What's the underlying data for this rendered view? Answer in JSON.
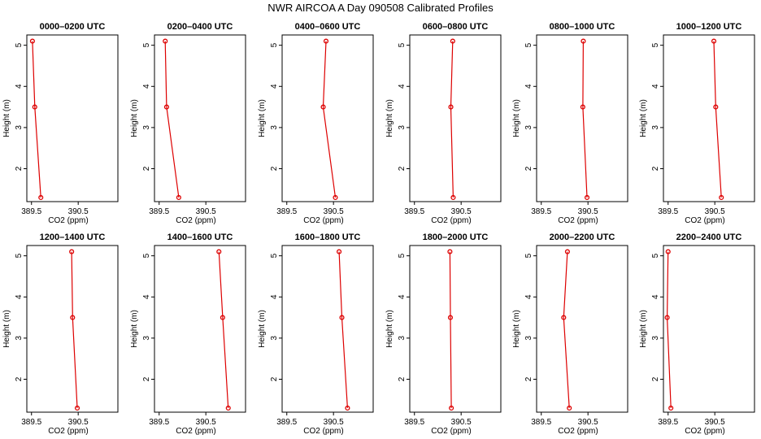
{
  "chart_data": {
    "title": "NWR AIRCOA A  Day 090508  Calibrated Profiles",
    "type": "line",
    "xlabel": "CO2 (ppm)",
    "ylabel": "Height (m)",
    "xlim": [
      389.4,
      391.35
    ],
    "ylim": [
      1.2,
      5.25
    ],
    "xticks": [
      389.5,
      390.5
    ],
    "xtick_labels": [
      "389.5",
      "390.5"
    ],
    "yticks": [
      2,
      3,
      4,
      5
    ],
    "ytick_labels": [
      "2",
      "3",
      "4",
      "5"
    ],
    "line_color": "#dd0000",
    "heights": [
      5.1,
      3.5,
      1.3
    ],
    "panels": [
      {
        "title": "0000–0200 UTC",
        "x": [
          389.52,
          389.57,
          389.7
        ]
      },
      {
        "title": "0200–0400 UTC",
        "x": [
          389.63,
          389.66,
          389.92
        ]
      },
      {
        "title": "0400–0600 UTC",
        "x": [
          390.34,
          390.28,
          390.54
        ]
      },
      {
        "title": "0600–0800 UTC",
        "x": [
          390.32,
          390.28,
          390.33
        ]
      },
      {
        "title": "0800–1000 UTC",
        "x": [
          390.4,
          390.39,
          390.48
        ]
      },
      {
        "title": "1000–1200 UTC",
        "x": [
          390.48,
          390.52,
          390.64
        ]
      },
      {
        "title": "1200–1400 UTC",
        "x": [
          390.36,
          390.38,
          390.48
        ]
      },
      {
        "title": "1400–1600 UTC",
        "x": [
          390.78,
          390.86,
          390.98
        ]
      },
      {
        "title": "1600–1800 UTC",
        "x": [
          390.62,
          390.68,
          390.8
        ]
      },
      {
        "title": "1800–2000 UTC",
        "x": [
          390.26,
          390.27,
          390.29
        ]
      },
      {
        "title": "2000–2200 UTC",
        "x": [
          390.06,
          389.98,
          390.1
        ]
      },
      {
        "title": "2200–2400 UTC",
        "x": [
          389.5,
          389.48,
          389.56
        ]
      }
    ]
  }
}
